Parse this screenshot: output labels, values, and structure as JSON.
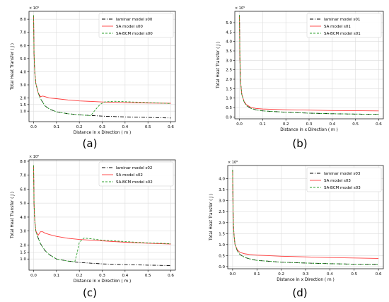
{
  "chart_data": [
    {
      "type": "line",
      "panel_label": "(a)",
      "exponent_label": "× 10⁵",
      "xlabel": "Distance in x Direction ( m )",
      "ylabel": "Total Heat Transfer ( J )",
      "xlim": [
        -0.02,
        0.62
      ],
      "ylim": [
        0.2,
        8.6
      ],
      "xticks": [
        0.0,
        0.1,
        0.2,
        0.3,
        0.4,
        0.5,
        0.6
      ],
      "xtick_labels": [
        "0.0",
        "0.1",
        "0.2",
        "0.3",
        "0.4",
        "0.5",
        "0.6"
      ],
      "yticks": [
        1.0,
        1.5,
        2.0,
        3.0,
        4.0,
        5.0,
        6.0,
        7.0,
        8.0
      ],
      "ytick_labels": [
        "1.0",
        "1.5",
        "2.0",
        "3.0",
        "4.0",
        "5.0",
        "6.0",
        "7.0",
        "8.0"
      ],
      "grid": true,
      "legend_position": "top-right",
      "series": [
        {
          "name": "laminar model s00",
          "color": "#000000",
          "style": "dashdot",
          "x": [
            0,
            0.002,
            0.004,
            0.006,
            0.01,
            0.02,
            0.03,
            0.05,
            0.07,
            0.1,
            0.15,
            0.2,
            0.3,
            0.4,
            0.5,
            0.6
          ],
          "y": [
            8.3,
            5.4,
            4.4,
            3.8,
            3.1,
            2.4,
            1.95,
            1.4,
            1.15,
            0.95,
            0.8,
            0.72,
            0.62,
            0.56,
            0.52,
            0.48
          ]
        },
        {
          "name": "SA model s00",
          "color": "#ff3b3b",
          "style": "solid",
          "x": [
            0,
            0.002,
            0.004,
            0.006,
            0.01,
            0.02,
            0.03,
            0.04,
            0.05,
            0.07,
            0.1,
            0.15,
            0.2,
            0.3,
            0.4,
            0.5,
            0.6
          ],
          "y": [
            8.3,
            5.4,
            4.4,
            3.8,
            3.1,
            2.4,
            2.1,
            2.15,
            2.1,
            2.0,
            1.95,
            1.85,
            1.78,
            1.7,
            1.65,
            1.62,
            1.6
          ]
        },
        {
          "name": "SA-BCM model s00",
          "color": "#2ca02c",
          "style": "dashed",
          "x": [
            0,
            0.002,
            0.004,
            0.006,
            0.01,
            0.02,
            0.03,
            0.05,
            0.07,
            0.1,
            0.15,
            0.2,
            0.25,
            0.27,
            0.29,
            0.31,
            0.35,
            0.4,
            0.5,
            0.6
          ],
          "y": [
            8.3,
            5.4,
            4.4,
            3.8,
            3.1,
            2.4,
            1.95,
            1.4,
            1.15,
            0.95,
            0.8,
            0.72,
            0.66,
            1.1,
            1.5,
            1.7,
            1.75,
            1.72,
            1.65,
            1.58
          ]
        }
      ]
    },
    {
      "type": "line",
      "panel_label": "(b)",
      "exponent_label": "× 10⁵",
      "xlabel": "Distance in x Direction ( m )",
      "ylabel": "Total Heat Transfer ( J )",
      "xlim": [
        -0.02,
        0.62
      ],
      "ylim": [
        -0.1,
        5.6
      ],
      "xticks": [
        0.0,
        0.1,
        0.2,
        0.3,
        0.4,
        0.5,
        0.6
      ],
      "xtick_labels": [
        "0.0",
        "0.1",
        "0.2",
        "0.3",
        "0.4",
        "0.5",
        "0.6"
      ],
      "yticks": [
        0.0,
        0.5,
        1.0,
        1.5,
        2.0,
        2.5,
        3.0,
        3.5,
        4.0,
        4.5,
        5.0
      ],
      "ytick_labels": [
        "0.0",
        "0.5",
        "1.0",
        "1.5",
        "2.0",
        "2.5",
        "3.0",
        "3.5",
        "4.0",
        "4.5",
        "5.0"
      ],
      "grid": true,
      "legend_position": "top-right",
      "series": [
        {
          "name": "laminar model s01",
          "color": "#000000",
          "style": "dashdot",
          "x": [
            0,
            0.002,
            0.004,
            0.006,
            0.01,
            0.02,
            0.03,
            0.05,
            0.07,
            0.1,
            0.2,
            0.3,
            0.4,
            0.5,
            0.6
          ],
          "y": [
            5.4,
            3.1,
            2.2,
            1.7,
            1.2,
            0.8,
            0.6,
            0.45,
            0.38,
            0.32,
            0.25,
            0.2,
            0.17,
            0.15,
            0.14
          ]
        },
        {
          "name": "SA model s01",
          "color": "#ff3b3b",
          "style": "solid",
          "x": [
            0,
            0.002,
            0.004,
            0.006,
            0.01,
            0.02,
            0.03,
            0.05,
            0.07,
            0.1,
            0.2,
            0.3,
            0.4,
            0.5,
            0.6
          ],
          "y": [
            5.4,
            3.1,
            2.2,
            1.7,
            1.2,
            0.82,
            0.65,
            0.5,
            0.45,
            0.42,
            0.38,
            0.36,
            0.34,
            0.33,
            0.32
          ]
        },
        {
          "name": "SA-BCM model s01",
          "color": "#2ca02c",
          "style": "dashed",
          "x": [
            0,
            0.002,
            0.004,
            0.006,
            0.01,
            0.02,
            0.03,
            0.05,
            0.07,
            0.1,
            0.2,
            0.3,
            0.4,
            0.5,
            0.6
          ],
          "y": [
            5.4,
            3.1,
            2.2,
            1.7,
            1.2,
            0.8,
            0.6,
            0.45,
            0.38,
            0.32,
            0.25,
            0.2,
            0.17,
            0.15,
            0.14
          ]
        }
      ]
    },
    {
      "type": "line",
      "panel_label": "(c)",
      "exponent_label": "× 10⁵",
      "xlabel": "Distance in x Direction ( m )",
      "ylabel": "Total Heat Transfer ( J )",
      "xlim": [
        -0.02,
        0.62
      ],
      "ylim": [
        0.2,
        8.1
      ],
      "xticks": [
        0.0,
        0.1,
        0.2,
        0.3,
        0.4,
        0.5,
        0.6
      ],
      "xtick_labels": [
        "0.0",
        "0.1",
        "0.2",
        "0.3",
        "0.4",
        "0.5",
        "0.6"
      ],
      "yticks": [
        1.0,
        1.5,
        2.0,
        3.0,
        4.0,
        5.0,
        6.0,
        7.0,
        8.0
      ],
      "ytick_labels": [
        "1.0",
        "1.5",
        "2.0",
        "3.0",
        "4.0",
        "5.0",
        "6.0",
        "7.0",
        "8.0"
      ],
      "grid": true,
      "legend_position": "top-right",
      "series": [
        {
          "name": "laminar model s02",
          "color": "#000000",
          "style": "dashdot",
          "x": [
            0,
            0.002,
            0.004,
            0.006,
            0.01,
            0.02,
            0.03,
            0.05,
            0.07,
            0.1,
            0.15,
            0.2,
            0.3,
            0.4,
            0.5,
            0.6
          ],
          "y": [
            7.7,
            5.0,
            4.1,
            3.6,
            3.0,
            2.5,
            2.1,
            1.6,
            1.3,
            1.0,
            0.85,
            0.75,
            0.65,
            0.6,
            0.56,
            0.53
          ]
        },
        {
          "name": "SA model s02",
          "color": "#ff3b3b",
          "style": "solid",
          "x": [
            0,
            0.002,
            0.004,
            0.006,
            0.01,
            0.02,
            0.03,
            0.04,
            0.05,
            0.07,
            0.1,
            0.15,
            0.2,
            0.3,
            0.4,
            0.5,
            0.6
          ],
          "y": [
            7.7,
            5.0,
            4.1,
            3.6,
            3.0,
            2.7,
            2.95,
            2.95,
            2.85,
            2.75,
            2.62,
            2.48,
            2.4,
            2.3,
            2.2,
            2.13,
            2.07
          ]
        },
        {
          "name": "SA-BCM model s02",
          "color": "#2ca02c",
          "style": "dashed",
          "x": [
            0,
            0.002,
            0.004,
            0.006,
            0.01,
            0.02,
            0.03,
            0.05,
            0.07,
            0.1,
            0.15,
            0.18,
            0.19,
            0.2,
            0.22,
            0.25,
            0.3,
            0.4,
            0.5,
            0.6
          ],
          "y": [
            7.7,
            5.0,
            4.1,
            3.6,
            3.0,
            2.5,
            2.1,
            1.6,
            1.3,
            1.0,
            0.85,
            0.8,
            1.4,
            2.2,
            2.5,
            2.45,
            2.35,
            2.25,
            2.15,
            2.1
          ]
        }
      ]
    },
    {
      "type": "line",
      "panel_label": "(d)",
      "exponent_label": "× 10⁶",
      "xlabel": "Distance in x Direction ( m )",
      "ylabel": "Total Heat Transfer ( J )",
      "xlim": [
        -0.02,
        0.62
      ],
      "ylim": [
        -0.1,
        4.6
      ],
      "xticks": [
        0.0,
        0.1,
        0.2,
        0.3,
        0.4,
        0.5,
        0.6
      ],
      "xtick_labels": [
        "0.0",
        "0.1",
        "0.2",
        "0.3",
        "0.4",
        "0.5",
        "0.6"
      ],
      "yticks": [
        0.0,
        0.5,
        1.0,
        1.5,
        2.0,
        2.5,
        3.0,
        3.5,
        4.0
      ],
      "ytick_labels": [
        "0.0",
        "0.5",
        "1.0",
        "1.5",
        "2.0",
        "2.5",
        "3.0",
        "3.5",
        "4.0"
      ],
      "grid": true,
      "legend_position": "top-right",
      "series": [
        {
          "name": "laminar model s03",
          "color": "#000000",
          "style": "dashdot",
          "x": [
            0,
            0.002,
            0.004,
            0.006,
            0.01,
            0.02,
            0.03,
            0.05,
            0.07,
            0.1,
            0.2,
            0.3,
            0.4,
            0.5,
            0.6
          ],
          "y": [
            4.4,
            2.5,
            1.8,
            1.4,
            1.0,
            0.7,
            0.55,
            0.42,
            0.35,
            0.28,
            0.2,
            0.16,
            0.13,
            0.11,
            0.1
          ]
        },
        {
          "name": "SA model s03",
          "color": "#ff3b3b",
          "style": "solid",
          "x": [
            0,
            0.002,
            0.004,
            0.006,
            0.01,
            0.02,
            0.03,
            0.05,
            0.07,
            0.1,
            0.2,
            0.3,
            0.4,
            0.5,
            0.6
          ],
          "y": [
            4.4,
            2.5,
            1.8,
            1.4,
            1.0,
            0.75,
            0.65,
            0.58,
            0.55,
            0.52,
            0.47,
            0.44,
            0.41,
            0.39,
            0.37
          ]
        },
        {
          "name": "SA-BCM model s03",
          "color": "#2ca02c",
          "style": "dashed",
          "x": [
            0,
            0.002,
            0.004,
            0.006,
            0.01,
            0.02,
            0.03,
            0.05,
            0.07,
            0.1,
            0.2,
            0.3,
            0.4,
            0.5,
            0.6
          ],
          "y": [
            4.4,
            2.5,
            1.8,
            1.4,
            1.0,
            0.7,
            0.55,
            0.42,
            0.35,
            0.28,
            0.2,
            0.16,
            0.13,
            0.11,
            0.1
          ]
        }
      ]
    }
  ]
}
